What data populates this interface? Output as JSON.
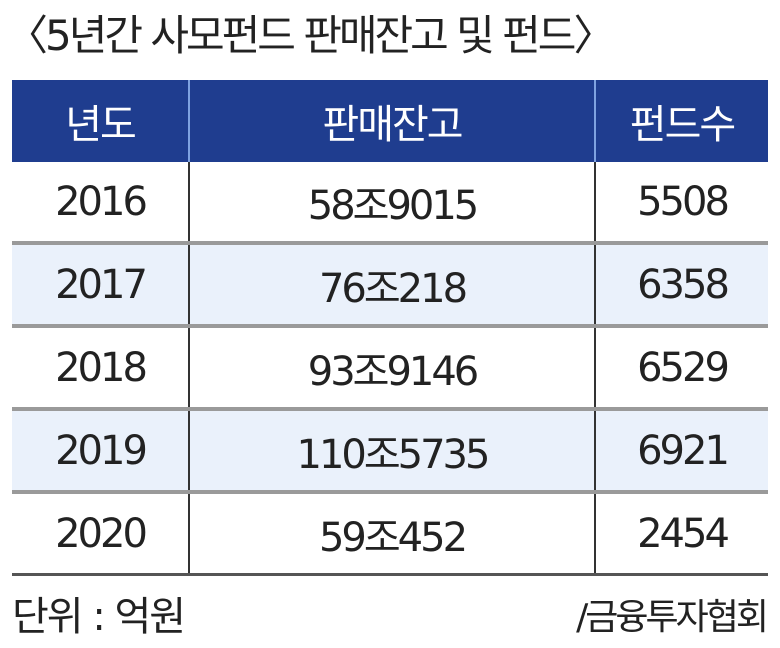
{
  "title": "〈5년간 사모펀드 판매잔고 및 펀드〉",
  "chart_data": {
    "type": "table",
    "columns": [
      "년도",
      "판매잔고",
      "펀드수"
    ],
    "rows": [
      [
        "2016",
        "58조9015",
        "5508"
      ],
      [
        "2017",
        "76조218",
        "6358"
      ],
      [
        "2018",
        "93조9146",
        "6529"
      ],
      [
        "2019",
        "110조5735",
        "6921"
      ],
      [
        "2020",
        "59조452",
        "2454"
      ]
    ]
  },
  "footer": {
    "unit": "단위 : 억원",
    "source": "/금융투자협회"
  },
  "colors": {
    "header_bg": "#1f3d8f",
    "alt_row_bg": "#eaf1fb"
  }
}
